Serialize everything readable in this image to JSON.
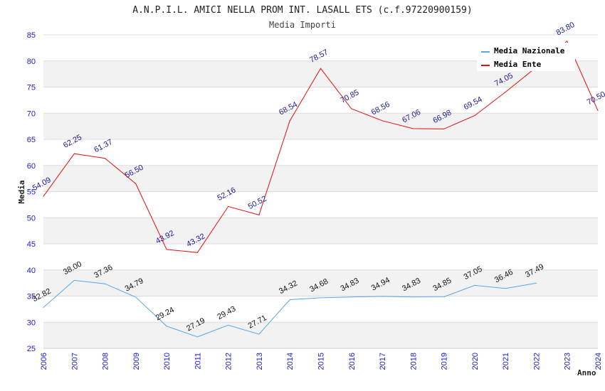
{
  "chart_data": {
    "type": "line",
    "title": "A.N.P.I.L. AMICI NELLA PROM INT. LASALL ETS (c.f.97220900159)",
    "subtitle": "Media Importi",
    "xlabel": "Anno",
    "ylabel": "Media",
    "ylim": [
      25,
      85
    ],
    "yticks": [
      25,
      30,
      35,
      40,
      45,
      50,
      55,
      60,
      65,
      70,
      75,
      80,
      85
    ],
    "grid": true,
    "legend_position": "top-right",
    "x": [
      "2006",
      "2007",
      "2008",
      "2009",
      "2010",
      "2011",
      "2012",
      "2013",
      "2014",
      "2015",
      "2016",
      "2017",
      "2018",
      "2019",
      "2020",
      "2021",
      "2022",
      "2023",
      "2024"
    ],
    "series": [
      {
        "name": "Media Nazionale",
        "color": "#5aa6e6",
        "values": [
          32.82,
          38.0,
          37.36,
          34.79,
          29.24,
          27.19,
          29.43,
          27.71,
          34.32,
          34.68,
          34.83,
          34.94,
          34.83,
          34.85,
          37.05,
          36.46,
          37.49,
          null,
          null
        ],
        "labels": [
          "32.82",
          "38.00",
          "37.36",
          "34.79",
          "29.24",
          "27.19",
          "29.43",
          "27.71",
          "34.32",
          "34.68",
          "34.83",
          "34.94",
          "34.83",
          "34.85",
          "37.05",
          "36.46",
          "37.49",
          null,
          null
        ]
      },
      {
        "name": "Media Ente",
        "color": "#e01010",
        "values": [
          54.09,
          62.25,
          61.37,
          56.5,
          43.92,
          43.32,
          52.16,
          50.52,
          68.54,
          78.57,
          70.85,
          68.56,
          67.06,
          66.98,
          69.54,
          74.05,
          78.8,
          83.8,
          70.5
        ],
        "labels": [
          "54.09",
          "62.25",
          "61.37",
          "56.50",
          "43.92",
          "43.32",
          "52.16",
          "50.52",
          "68.54",
          "78.57",
          "70.85",
          "68.56",
          "67.06",
          "66.98",
          "69.54",
          "74.05",
          null,
          "83.80",
          "70.50"
        ]
      }
    ]
  }
}
